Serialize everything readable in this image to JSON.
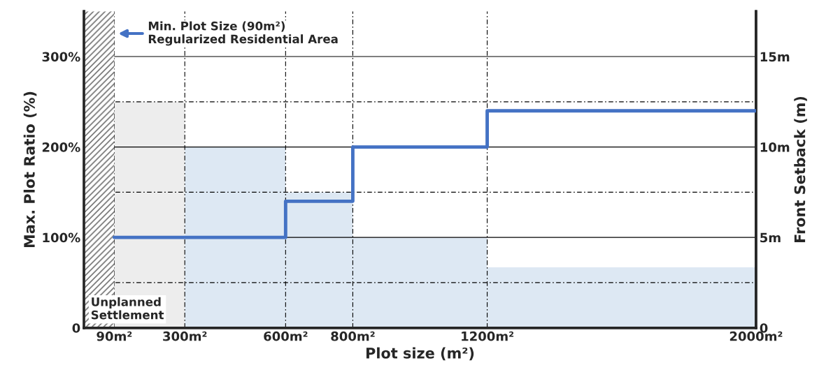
{
  "chart_data": {
    "type": "step",
    "xlabel": "Plot size (m²)",
    "ylabel": "Max. Plot Ratio (%)",
    "y2label": "Front Setback (m)",
    "xlim": [
      0,
      2000
    ],
    "xticks": [
      {
        "value": 90,
        "label": "90m²"
      },
      {
        "value": 300,
        "label": "300m²"
      },
      {
        "value": 600,
        "label": "600m²"
      },
      {
        "value": 800,
        "label": "800m²"
      },
      {
        "value": 1200,
        "label": "1200m²"
      },
      {
        "value": 2000,
        "label": "2000m²"
      }
    ],
    "ylim": [
      0,
      350
    ],
    "yticks": [
      0,
      {
        "value": 100,
        "label": "100%"
      },
      {
        "value": 200,
        "label": "200%"
      },
      {
        "value": 300,
        "label": "300%"
      }
    ],
    "y2lim": [
      0,
      17.5
    ],
    "y2ticks": [
      0,
      {
        "value": 5,
        "label": "5m"
      },
      {
        "value": 10,
        "label": "10m"
      },
      {
        "value": 15,
        "label": "15m"
      }
    ],
    "series": [
      {
        "type": "area",
        "color": "#ededed",
        "x": [
          90,
          300
        ],
        "values": [
          250,
          250
        ]
      },
      {
        "type": "area",
        "color": "#dde8f3",
        "x": [
          300,
          600,
          600,
          800,
          800,
          1200,
          1200,
          2000
        ],
        "values": [
          200,
          200,
          150,
          150,
          100,
          100,
          67,
          67
        ]
      },
      {
        "axis": "y2",
        "color": "#4472c4",
        "x": [
          90,
          600,
          800,
          1200,
          2000
        ],
        "values": [
          5,
          7,
          10,
          12,
          12
        ]
      }
    ],
    "grid": "y",
    "ref_lines": [
      {
        "axis": "y",
        "value": 50,
        "line_style": "dashed",
        "color": "#000000"
      },
      {
        "axis": "y",
        "value": 150,
        "line_style": "dashed",
        "color": "#000000"
      },
      {
        "axis": "y",
        "value": 250,
        "line_style": "dashed",
        "color": "#000000"
      },
      {
        "axis": "x",
        "value": 90,
        "line_style": "dashed",
        "color": "#000000"
      },
      {
        "axis": "x",
        "value": 300,
        "line_style": "dashed",
        "color": "#000000"
      },
      {
        "axis": "x",
        "value": 600,
        "line_style": "dashed",
        "color": "#000000"
      },
      {
        "axis": "x",
        "value": 800,
        "line_style": "dashed",
        "color": "#000000"
      },
      {
        "axis": "x",
        "value": 1200,
        "line_style": "dashed",
        "color": "#000000"
      }
    ],
    "bands": [
      {
        "axis": "x",
        "from": 0,
        "to": 90,
        "label": "Unplanned\nSettlement",
        "color": "#555555"
      }
    ],
    "annotations": [
      "Min. Plot Size (90m²)\nRegularized Residential Area"
    ]
  }
}
